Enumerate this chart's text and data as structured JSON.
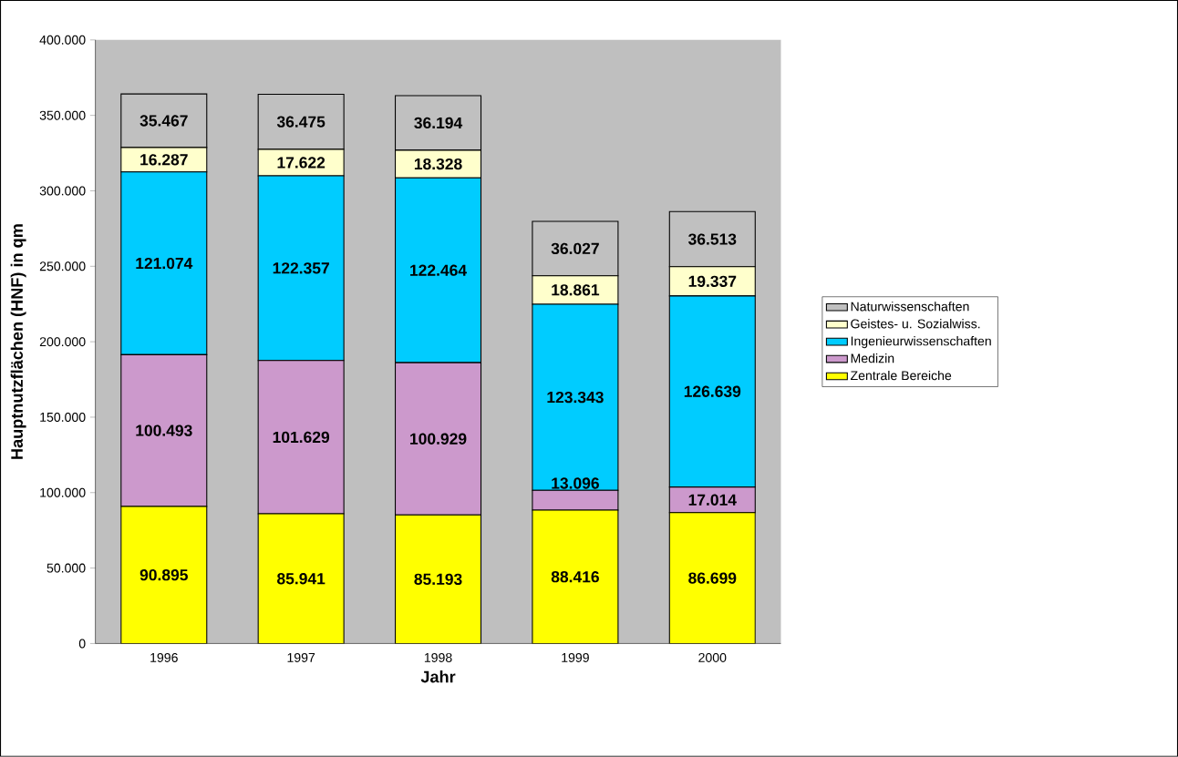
{
  "chart_data": {
    "type": "bar",
    "stacked": true,
    "xlabel": "Jahr",
    "ylabel": "Hauptnutzflächen (HNF) in qm",
    "categories": [
      "1996",
      "1997",
      "1998",
      "1999",
      "2000"
    ],
    "series": [
      {
        "name": "Zentrale Bereiche",
        "color": "#ffff00",
        "values": [
          90895,
          85941,
          85193,
          88416,
          86699
        ],
        "value_labels": [
          "90.895",
          "85.941",
          "85.193",
          "88.416",
          "86.699"
        ]
      },
      {
        "name": "Medizin",
        "color": "#cc99cc",
        "values": [
          100493,
          101629,
          100929,
          13096,
          17014
        ],
        "value_labels": [
          "100.493",
          "101.629",
          "100.929",
          "13.096",
          "17.014"
        ]
      },
      {
        "name": "Ingenieurwissenschaften",
        "color": "#00ccff",
        "values": [
          121074,
          122357,
          122464,
          123343,
          126639
        ],
        "value_labels": [
          "121.074",
          "122.357",
          "122.464",
          "123.343",
          "126.639"
        ]
      },
      {
        "name": "Geistes- u. Sozialwiss.",
        "color": "#ffffcc",
        "values": [
          16287,
          17622,
          18328,
          18861,
          19337
        ],
        "value_labels": [
          "16.287",
          "17.622",
          "18.328",
          "18.861",
          "19.337"
        ]
      },
      {
        "name": "Naturwissenschaften",
        "color": "#c0c0c0",
        "values": [
          35467,
          36475,
          36194,
          36027,
          36513
        ],
        "value_labels": [
          "35.467",
          "36.475",
          "36.194",
          "36.027",
          "36.513"
        ]
      }
    ],
    "ylim": [
      0,
      400000
    ],
    "yticks": [
      0,
      {
        "value": 50000,
        "label": "50.000"
      },
      {
        "value": 100000,
        "label": "100.000"
      },
      {
        "value": 150000,
        "label": "150.000"
      },
      {
        "value": 200000,
        "label": "200.000"
      },
      {
        "value": 250000,
        "label": "250.000"
      },
      {
        "value": 300000,
        "label": "300.000"
      },
      {
        "value": 350000,
        "label": "350.000"
      },
      {
        "value": 400000,
        "label": "400.000"
      }
    ],
    "legend": "right"
  }
}
